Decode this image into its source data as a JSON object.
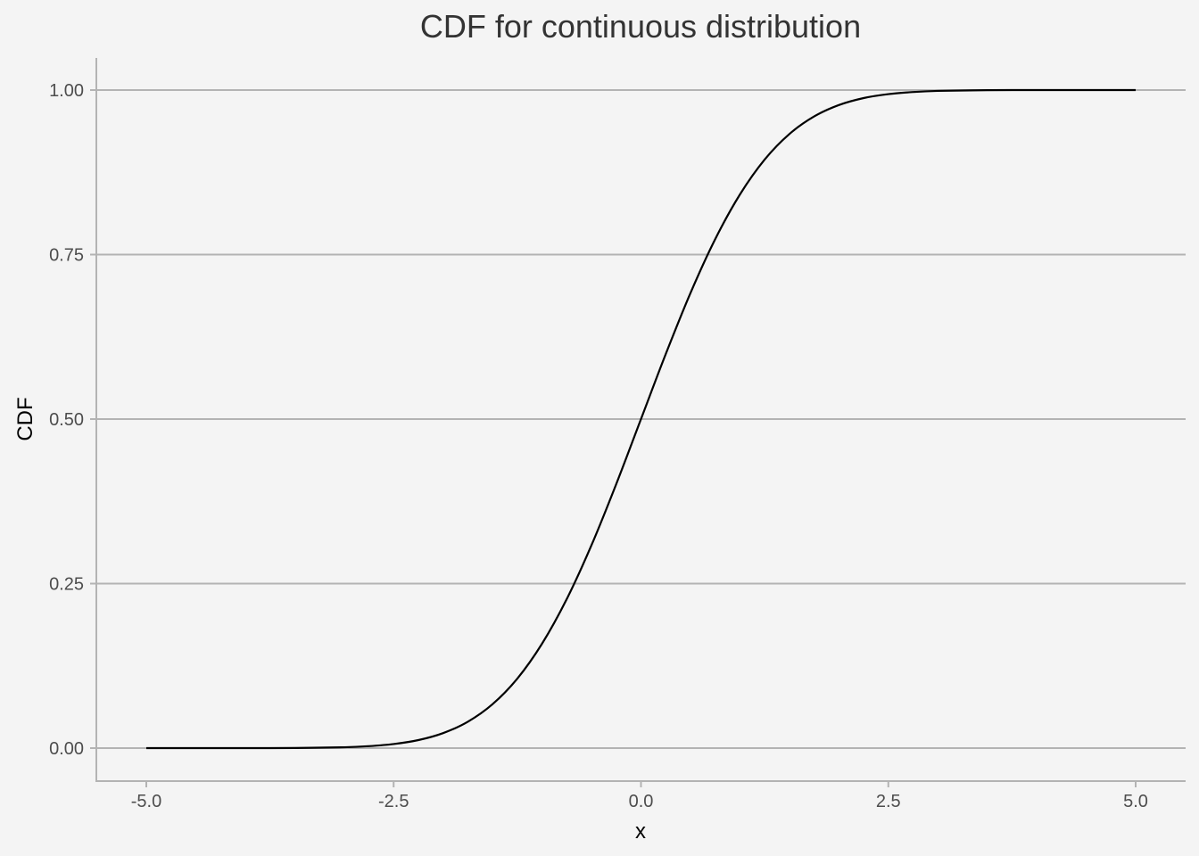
{
  "chart_data": {
    "type": "line",
    "title": "CDF for continuous distribution",
    "xlabel": "x",
    "ylabel": "CDF",
    "xlim": [
      -5.0,
      5.0
    ],
    "ylim": [
      0.0,
      1.0
    ],
    "x_ticks": [
      -5.0,
      -2.5,
      0.0,
      2.5,
      5.0
    ],
    "x_tick_labels": [
      "-5.0",
      "-2.5",
      "0.0",
      "2.5",
      "5.0"
    ],
    "y_ticks": [
      0.0,
      0.25,
      0.5,
      0.75,
      1.0
    ],
    "y_tick_labels": [
      "0.00",
      "0.25",
      "0.50",
      "0.75",
      "1.00"
    ],
    "grid": "horizontal major",
    "legend": "none",
    "series": [
      {
        "color": "#000000",
        "x": [
          -5.0,
          -4.5,
          -4.0,
          -3.5,
          -3.0,
          -2.75,
          -2.5,
          -2.25,
          -2.0,
          -1.75,
          -1.5,
          -1.25,
          -1.0,
          -0.75,
          -0.5,
          -0.25,
          0.0,
          0.25,
          0.5,
          0.75,
          1.0,
          1.25,
          1.5,
          1.75,
          2.0,
          2.25,
          2.5,
          2.75,
          3.0,
          3.5,
          4.0,
          4.5,
          5.0
        ],
        "y": [
          0.0,
          0.0,
          0.0,
          0.0002,
          0.0013,
          0.003,
          0.0062,
          0.0122,
          0.0228,
          0.0401,
          0.0668,
          0.1056,
          0.1587,
          0.2266,
          0.3085,
          0.4013,
          0.5,
          0.5987,
          0.6915,
          0.7734,
          0.8413,
          0.8944,
          0.9332,
          0.9599,
          0.9772,
          0.9878,
          0.9938,
          0.997,
          0.9987,
          0.9998,
          1.0,
          1.0,
          1.0
        ]
      }
    ]
  },
  "colors": {
    "background": "#f4f4f4",
    "grid": "#b3b3b3",
    "line": "#000000"
  }
}
